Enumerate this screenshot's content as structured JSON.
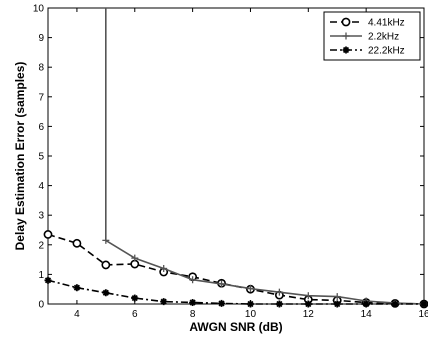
{
  "chart_data": {
    "type": "line",
    "title": "",
    "xlabel": "AWGN SNR (dB)",
    "ylabel": "Delay Estimation Error (samples)",
    "xlim": [
      3,
      16
    ],
    "ylim": [
      0,
      10
    ],
    "x_ticks": [
      4,
      6,
      8,
      10,
      12,
      14,
      16
    ],
    "y_ticks": [
      0,
      1,
      2,
      3,
      4,
      5,
      6,
      7,
      8,
      9,
      10
    ],
    "grid": false,
    "legend_position": "top-right",
    "series": [
      {
        "name": "4.41kHz",
        "line_style": "dashed",
        "marker": "circle",
        "color": "#000000",
        "x": [
          3,
          4,
          5,
          6,
          7,
          8,
          9,
          10,
          11,
          12,
          13,
          14,
          15,
          16
        ],
        "y": [
          2.35,
          2.05,
          1.32,
          1.35,
          1.08,
          0.92,
          0.7,
          0.5,
          0.3,
          0.15,
          0.12,
          0.05,
          0.02,
          0.0
        ]
      },
      {
        "name": "2.2kHz",
        "line_style": "solid",
        "marker": "plus",
        "color": "#555555",
        "x": [
          5,
          5,
          6,
          7,
          8,
          9,
          10,
          11,
          12,
          13,
          14,
          15,
          16
        ],
        "y": [
          10,
          2.15,
          1.55,
          1.2,
          0.82,
          0.68,
          0.52,
          0.4,
          0.28,
          0.25,
          0.1,
          0.03,
          0.0
        ]
      },
      {
        "name": "22.2kHz",
        "line_style": "dash-dot",
        "marker": "star",
        "color": "#000000",
        "x": [
          3,
          4,
          5,
          6,
          7,
          8,
          9,
          10,
          11,
          12,
          13,
          14,
          15,
          16
        ],
        "y": [
          0.8,
          0.55,
          0.38,
          0.2,
          0.08,
          0.05,
          0.02,
          0.0,
          0.0,
          0.0,
          0.0,
          0.0,
          0.0,
          0.0
        ]
      }
    ]
  }
}
